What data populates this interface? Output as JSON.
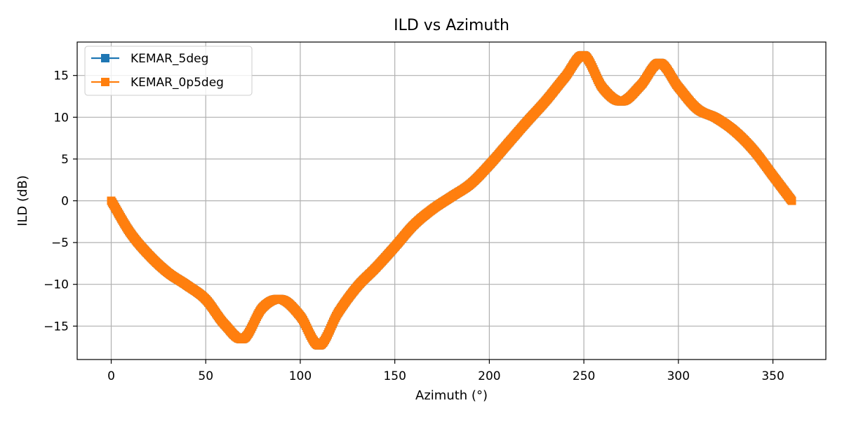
{
  "chart_data": {
    "type": "line",
    "title": "ILD vs Azimuth",
    "xlabel": "Azimuth (°)",
    "ylabel": "ILD (dB)",
    "xlim": [
      -18,
      378
    ],
    "ylim": [
      -19,
      19
    ],
    "xticks": [
      0,
      50,
      100,
      150,
      200,
      250,
      300,
      350
    ],
    "yticks": [
      -15,
      -10,
      -5,
      0,
      5,
      10,
      15
    ],
    "xtick_labels": [
      "0",
      "50",
      "100",
      "150",
      "200",
      "250",
      "300",
      "350"
    ],
    "ytick_labels": [
      "−15",
      "−10",
      "−5",
      "0",
      "5",
      "10",
      "15"
    ],
    "grid": true,
    "legend_position": "top-left",
    "x": [
      0,
      10,
      20,
      30,
      40,
      50,
      60,
      70,
      80,
      90,
      100,
      110,
      120,
      130,
      140,
      150,
      160,
      170,
      180,
      190,
      200,
      210,
      220,
      230,
      240,
      250,
      260,
      270,
      280,
      290,
      300,
      310,
      320,
      330,
      340,
      350,
      360
    ],
    "series": [
      {
        "name": "KEMAR_5deg",
        "color": "#1f77b4",
        "marker": "square",
        "values": [
          0,
          -3.8,
          -6.5,
          -8.6,
          -10.1,
          -11.8,
          -14.8,
          -16.5,
          -12.8,
          -11.8,
          -13.8,
          -17.3,
          -13.4,
          -10.3,
          -8.0,
          -5.5,
          -2.9,
          -1.0,
          0.5,
          2.0,
          4.3,
          6.9,
          9.5,
          12.0,
          14.8,
          17.4,
          13.5,
          11.9,
          13.8,
          16.5,
          13.6,
          11.0,
          9.9,
          8.3,
          6.0,
          3.0,
          0
        ]
      },
      {
        "name": "KEMAR_0p5deg",
        "color": "#ff7f0e",
        "marker": "square",
        "values": [
          0,
          -3.8,
          -6.5,
          -8.6,
          -10.1,
          -11.8,
          -14.8,
          -16.5,
          -12.8,
          -11.8,
          -13.8,
          -17.3,
          -13.4,
          -10.3,
          -8.0,
          -5.5,
          -2.9,
          -1.0,
          0.5,
          2.0,
          4.3,
          6.9,
          9.5,
          12.0,
          14.8,
          17.4,
          13.5,
          11.9,
          13.8,
          16.5,
          13.6,
          11.0,
          9.9,
          8.3,
          6.0,
          3.0,
          0
        ]
      }
    ]
  }
}
